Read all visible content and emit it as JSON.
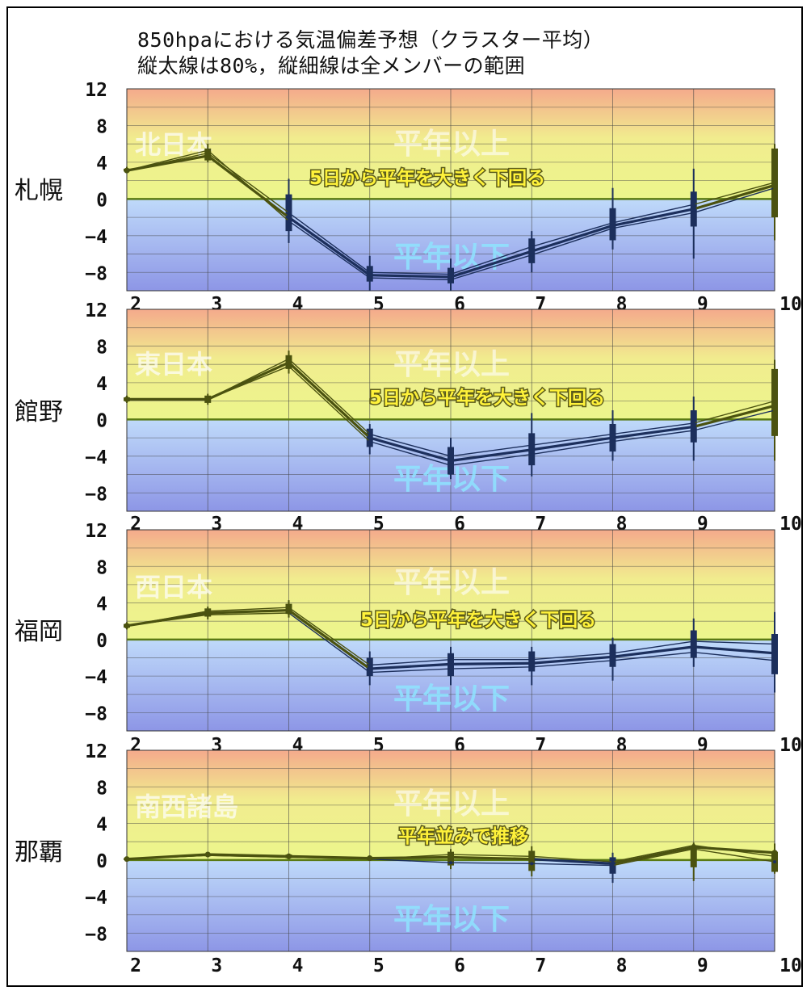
{
  "title": {
    "line1": "850hpaにおける気温偏差予想（クラスター平均）",
    "line2": "縦太線は80%，縦細線は全メンバーの範囲"
  },
  "colors": {
    "top": "#f4aa8c",
    "mid": "#f1ec8e",
    "low": "#ecf68c",
    "below_top": "#bfdafa",
    "below_bottom": "#8d96e6",
    "grid": "#444444",
    "zero_line": "#5a7a14",
    "line_above": "#4b5210",
    "line_below": "#1c2f5c",
    "label_region": "#ffffff",
    "label_yellow": "#fff23a"
  },
  "chart_data": [
    {
      "type": "line",
      "station": "札幌",
      "region": "北日本",
      "above_label": "平年以上",
      "below_label": "平年以下",
      "comment": "5日から平年を大きく下回る",
      "x": [
        2,
        3,
        4,
        5,
        6,
        7,
        8,
        9,
        10
      ],
      "xticks": [
        "2",
        "3",
        "4",
        "5",
        "6",
        "7",
        "8",
        "9",
        "10"
      ],
      "ylim": [
        -10,
        12
      ],
      "yticks": [
        "12",
        "8",
        "4",
        "0",
        "−4",
        "−8"
      ],
      "ytick_values": [
        12,
        8,
        4,
        0,
        -4,
        -8
      ],
      "series": [
        {
          "values": [
            3.1,
            4.7,
            -2.0,
            -8.3,
            -8.5,
            -5.7,
            -2.9,
            -1.1,
            1.5
          ]
        },
        {
          "values": [
            3.1,
            5.0,
            -1.5,
            -8.0,
            -8.2,
            -5.2,
            -2.6,
            -0.6,
            1.8
          ]
        },
        {
          "values": [
            3.1,
            5.3,
            -2.4,
            -8.6,
            -8.8,
            -6.1,
            -3.2,
            -1.5,
            1.2
          ]
        }
      ],
      "spread": {
        "p80": [
          [
            3.0,
            3.3
          ],
          [
            4.2,
            5.5
          ],
          [
            -3.5,
            0.5
          ],
          [
            -9.0,
            -7.3
          ],
          [
            -9.2,
            -7.5
          ],
          [
            -7.0,
            -4.3
          ],
          [
            -4.5,
            -1.0
          ],
          [
            -3.0,
            0.8
          ],
          [
            -2.0,
            5.5
          ]
        ],
        "full": [
          [
            2.8,
            3.5
          ],
          [
            4.0,
            6.0
          ],
          [
            -4.8,
            2.2
          ],
          [
            -10.0,
            -6.2
          ],
          [
            -10.0,
            -6.5
          ],
          [
            -8.0,
            -3.5
          ],
          [
            -5.5,
            1.2
          ],
          [
            -6.5,
            3.3
          ],
          [
            -4.5,
            6.0
          ]
        ]
      }
    },
    {
      "type": "line",
      "station": "館野",
      "region": "東日本",
      "above_label": "平年以上",
      "below_label": "平年以下",
      "comment": "5日から平年を大きく下回る",
      "x": [
        2,
        3,
        4,
        5,
        6,
        7,
        8,
        9,
        10
      ],
      "xticks": [
        "2",
        "3",
        "4",
        "5",
        "6",
        "7",
        "8",
        "9",
        "10"
      ],
      "ylim": [
        -10,
        12
      ],
      "yticks": [
        "12",
        "8",
        "4",
        "0",
        "−4",
        "−8"
      ],
      "ytick_values": [
        12,
        8,
        4,
        0,
        -4,
        -8
      ],
      "series": [
        {
          "values": [
            2.2,
            2.2,
            6.2,
            -2.0,
            -4.5,
            -3.3,
            -2.0,
            -0.8,
            1.5
          ]
        },
        {
          "values": [
            2.2,
            2.2,
            6.6,
            -1.6,
            -4.0,
            -2.8,
            -1.6,
            -0.4,
            2.0
          ]
        },
        {
          "values": [
            2.2,
            2.2,
            5.8,
            -2.4,
            -5.0,
            -3.8,
            -2.4,
            -1.2,
            1.0
          ]
        }
      ],
      "spread": {
        "p80": [
          [
            2.0,
            2.4
          ],
          [
            1.8,
            2.6
          ],
          [
            5.5,
            7.0
          ],
          [
            -3.0,
            -1.0
          ],
          [
            -6.0,
            -3.0
          ],
          [
            -5.0,
            -1.5
          ],
          [
            -3.5,
            -0.5
          ],
          [
            -2.5,
            1.0
          ],
          [
            -1.8,
            5.5
          ]
        ],
        "full": [
          [
            1.8,
            2.6
          ],
          [
            1.6,
            2.8
          ],
          [
            5.0,
            7.5
          ],
          [
            -3.8,
            -0.5
          ],
          [
            -6.5,
            -2.0
          ],
          [
            -6.2,
            0.7
          ],
          [
            -4.5,
            1.0
          ],
          [
            -4.5,
            2.5
          ],
          [
            -4.5,
            6.5
          ]
        ]
      }
    },
    {
      "type": "line",
      "station": "福岡",
      "region": "西日本",
      "above_label": "平年以上",
      "below_label": "平年以下",
      "comment": "5日から平年を大きく下回る",
      "x": [
        2,
        3,
        4,
        5,
        6,
        7,
        8,
        9,
        10
      ],
      "xticks": [
        "2",
        "3",
        "4",
        "5",
        "6",
        "7",
        "8",
        "9",
        "10"
      ],
      "ylim": [
        -10,
        12
      ],
      "yticks": [
        "12",
        "8",
        "4",
        "0",
        "−4",
        "−8"
      ],
      "ytick_values": [
        12,
        8,
        4,
        0,
        -4,
        -8
      ],
      "series": [
        {
          "values": [
            1.5,
            2.9,
            3.2,
            -3.2,
            -2.7,
            -2.6,
            -1.9,
            -0.8,
            -1.5
          ]
        },
        {
          "values": [
            1.5,
            3.1,
            3.5,
            -2.8,
            -2.2,
            -2.2,
            -1.5,
            -0.2,
            -0.5
          ]
        },
        {
          "values": [
            1.5,
            2.7,
            2.9,
            -3.6,
            -3.2,
            -3.0,
            -2.3,
            -1.4,
            -2.3
          ]
        }
      ],
      "spread": {
        "p80": [
          [
            1.3,
            1.7
          ],
          [
            2.5,
            3.4
          ],
          [
            2.8,
            3.9
          ],
          [
            -4.0,
            -2.0
          ],
          [
            -4.0,
            -1.5
          ],
          [
            -3.5,
            -1.3
          ],
          [
            -3.0,
            -0.5
          ],
          [
            -2.0,
            1.0
          ],
          [
            -3.8,
            0.6
          ]
        ],
        "full": [
          [
            1.1,
            1.9
          ],
          [
            2.2,
            3.6
          ],
          [
            2.4,
            4.3
          ],
          [
            -5.0,
            -1.3
          ],
          [
            -5.0,
            -0.8
          ],
          [
            -5.0,
            -0.8
          ],
          [
            -4.5,
            0.2
          ],
          [
            -3.0,
            2.3
          ],
          [
            -5.8,
            3.0
          ]
        ]
      }
    },
    {
      "type": "line",
      "station": "那覇",
      "region": "南西諸島",
      "above_label": "平年以上",
      "below_label": "平年以下",
      "comment": "平年並みで推移",
      "x": [
        2,
        3,
        4,
        5,
        6,
        7,
        8,
        9,
        10
      ],
      "xticks": [
        "2",
        "3",
        "4",
        "5",
        "6",
        "7",
        "8",
        "9",
        "10"
      ],
      "ylim": [
        -10,
        12
      ],
      "yticks": [
        "12",
        "8",
        "4",
        "0",
        "−4",
        "−8"
      ],
      "ytick_values": [
        12,
        8,
        4,
        0,
        -4,
        -8
      ],
      "series": [
        {
          "values": [
            0.1,
            0.6,
            0.4,
            0.2,
            0.3,
            0.1,
            -0.4,
            1.4,
            0.8
          ]
        },
        {
          "values": [
            0.1,
            0.5,
            0.3,
            0.1,
            -0.3,
            -0.4,
            -0.6,
            1.2,
            -0.2
          ]
        },
        {
          "values": [
            0.1,
            0.5,
            0.3,
            0.1,
            0.6,
            0.4,
            -0.2,
            1.6,
            0.4
          ]
        }
      ],
      "spread": {
        "p80": [
          [
            0.0,
            0.2
          ],
          [
            0.4,
            0.7
          ],
          [
            0.2,
            0.6
          ],
          [
            0.0,
            0.3
          ],
          [
            -0.6,
            0.9
          ],
          [
            -1.2,
            1.0
          ],
          [
            -1.5,
            0.3
          ],
          [
            -0.8,
            1.5
          ],
          [
            -1.3,
            0.9
          ]
        ],
        "full": [
          [
            -0.1,
            0.3
          ],
          [
            0.3,
            0.8
          ],
          [
            0.1,
            0.7
          ],
          [
            -0.1,
            0.4
          ],
          [
            -1.0,
            1.2
          ],
          [
            -1.8,
            1.5
          ],
          [
            -2.5,
            0.8
          ],
          [
            -2.3,
            1.9
          ],
          [
            -1.5,
            1.8
          ]
        ]
      }
    }
  ]
}
